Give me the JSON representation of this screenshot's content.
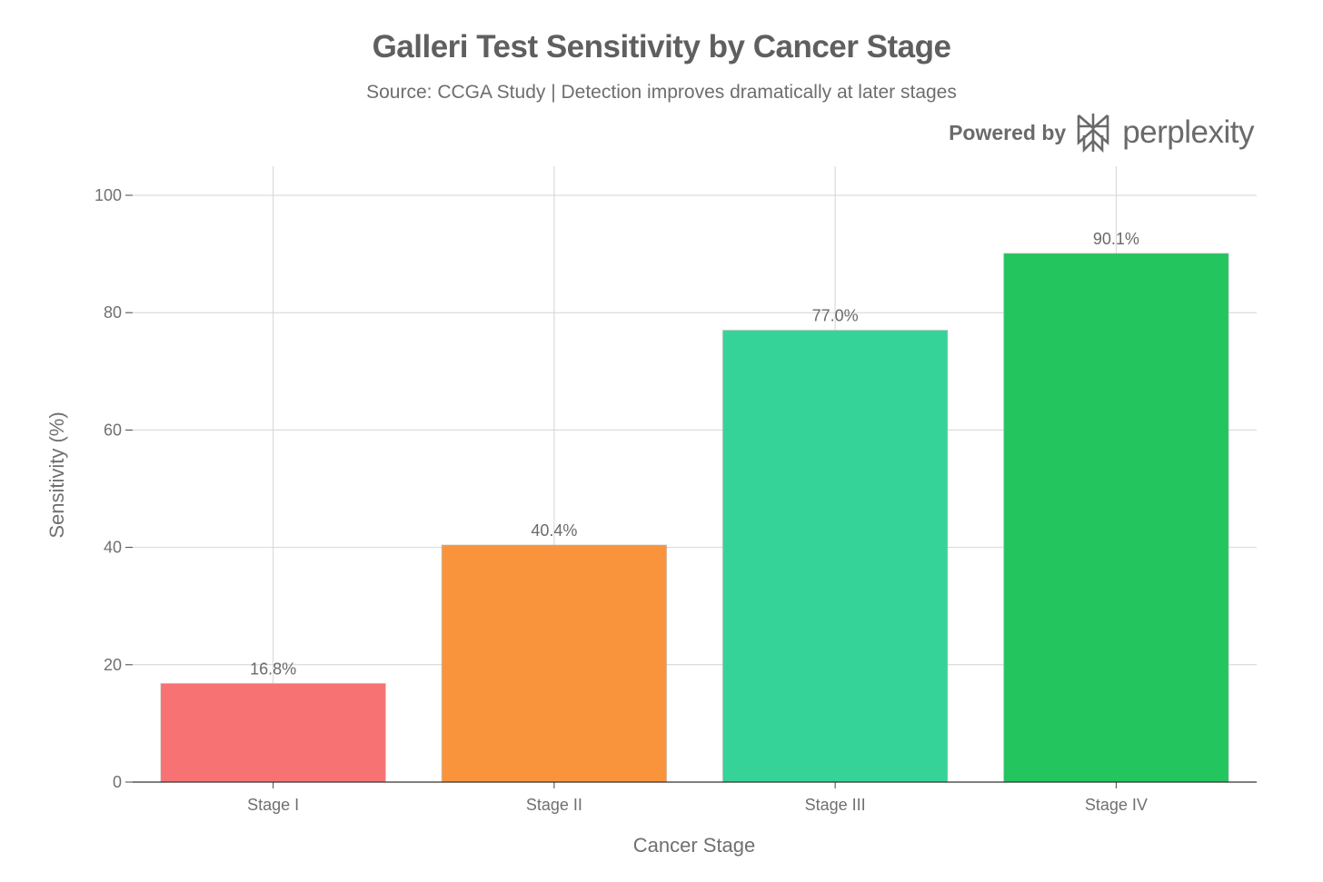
{
  "chart_data": {
    "type": "bar",
    "title": "Galleri Test Sensitivity by Cancer Stage",
    "subtitle": "Source: CCGA Study | Detection improves dramatically at later stages",
    "xlabel": "Cancer Stage",
    "ylabel": "Sensitivity (%)",
    "categories": [
      "Stage I",
      "Stage II",
      "Stage III",
      "Stage IV"
    ],
    "values": [
      16.8,
      40.4,
      77.0,
      90.1
    ],
    "data_labels": [
      "16.8%",
      "40.4%",
      "77.0%",
      "90.1%"
    ],
    "colors": [
      "#F77272",
      "#F9943D",
      "#36D399",
      "#22C55E"
    ],
    "ylim": [
      0,
      105
    ],
    "yticks": [
      0,
      20,
      40,
      60,
      80,
      100
    ],
    "ytick_labels": [
      "0",
      "20",
      "40",
      "60",
      "80",
      "100"
    ],
    "grid": true,
    "legend": "none"
  },
  "branding": {
    "powered_by": "Powered by",
    "brand": "perplexity",
    "logo_icon": "perplexity-logo-icon",
    "text_color": "#6a6a6a"
  }
}
